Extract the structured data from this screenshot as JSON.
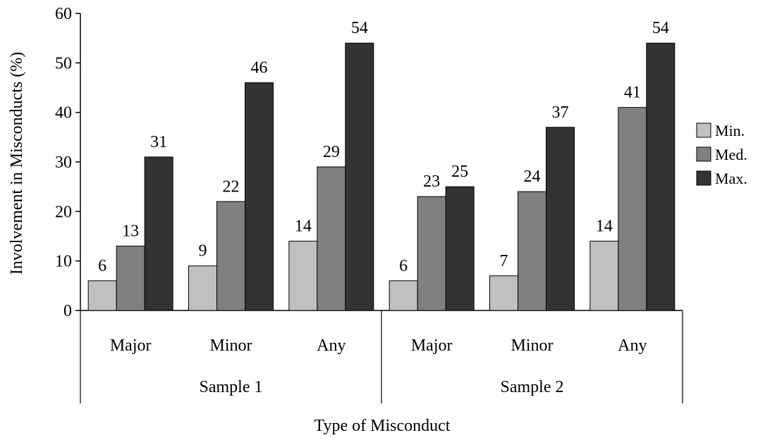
{
  "chart_data": {
    "type": "bar",
    "title": "",
    "xlabel": "Type of Misconduct",
    "ylabel": "Involvement in Misconducts (%)",
    "ylim": [
      0,
      60
    ],
    "yticks": [
      0,
      10,
      20,
      30,
      40,
      50,
      60
    ],
    "grid": false,
    "legend_position": "right",
    "groups": [
      {
        "label": "Sample 1",
        "categories": [
          "Major",
          "Minor",
          "Any"
        ]
      },
      {
        "label": "Sample 2",
        "categories": [
          "Major",
          "Minor",
          "Any"
        ]
      }
    ],
    "categories": [
      "Major",
      "Minor",
      "Any",
      "Major",
      "Minor",
      "Any"
    ],
    "series": [
      {
        "name": "Min.",
        "color": "#c0c0c0",
        "values": [
          6,
          9,
          14,
          6,
          7,
          14
        ]
      },
      {
        "name": "Med.",
        "color": "#808080",
        "values": [
          13,
          22,
          29,
          23,
          24,
          41
        ]
      },
      {
        "name": "Max.",
        "color": "#333333",
        "values": [
          31,
          46,
          54,
          25,
          37,
          54
        ]
      }
    ]
  }
}
